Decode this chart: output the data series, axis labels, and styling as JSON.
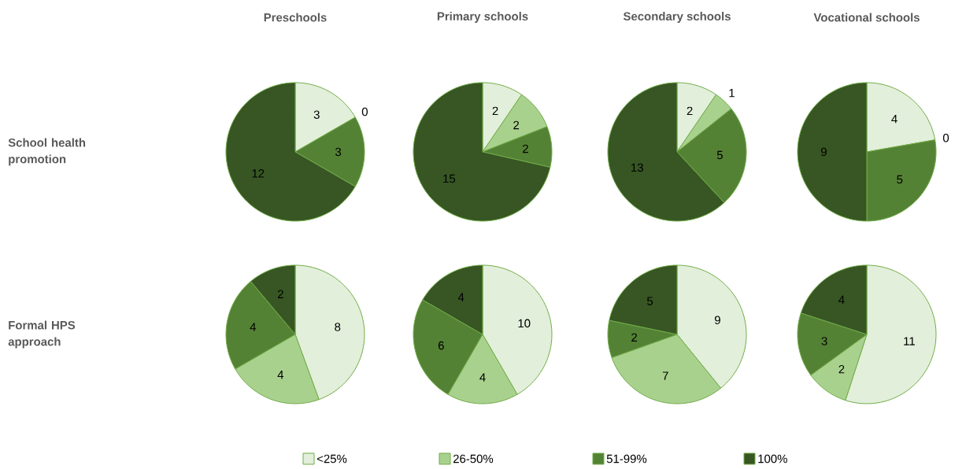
{
  "chart_data": [
    {
      "type": "pie",
      "title": "Preschools",
      "ylabel": "School health promotion",
      "categories": [
        null,
        null,
        null,
        null
      ],
      "values": [
        3,
        0,
        3,
        12
      ],
      "value_labels": [
        "3",
        "0",
        "3",
        "12"
      ],
      "colors": [
        "#e2efda",
        "#a9d18e",
        "#548235",
        "#375623"
      ]
    },
    {
      "type": "pie",
      "title": "Primary schools",
      "categories": [
        null,
        null,
        null,
        null
      ],
      "values": [
        2,
        2,
        2,
        15
      ],
      "value_labels": [
        "2",
        "2",
        "2",
        "15"
      ],
      "colors": [
        "#e2efda",
        "#a9d18e",
        "#548235",
        "#375623"
      ]
    },
    {
      "type": "pie",
      "title": "Secondary schools",
      "categories": [
        null,
        null,
        null,
        null
      ],
      "values": [
        2,
        1,
        5,
        13
      ],
      "value_labels": [
        "2",
        "1",
        "5",
        "13"
      ],
      "colors": [
        "#e2efda",
        "#a9d18e",
        "#548235",
        "#375623"
      ]
    },
    {
      "type": "pie",
      "title": "Vocational schools",
      "categories": [
        null,
        null,
        null,
        null
      ],
      "values": [
        4,
        0,
        5,
        9
      ],
      "value_labels": [
        "4",
        "0",
        "5",
        "9"
      ],
      "colors": [
        "#e2efda",
        "#a9d18e",
        "#548235",
        "#375623"
      ]
    },
    {
      "type": "pie",
      "ylabel": "Formal HPS approach",
      "categories": [
        null,
        null,
        null,
        null
      ],
      "values": [
        8,
        4,
        4,
        2
      ],
      "value_labels": [
        "8",
        "4",
        "4",
        "2"
      ],
      "colors": [
        "#e2efda",
        "#a9d18e",
        "#548235",
        "#375623"
      ]
    },
    {
      "type": "pie",
      "categories": [
        null,
        null,
        null,
        null
      ],
      "values": [
        10,
        4,
        6,
        4
      ],
      "value_labels": [
        "10",
        "4",
        "6",
        "4"
      ],
      "colors": [
        "#e2efda",
        "#a9d18e",
        "#548235",
        "#375623"
      ]
    },
    {
      "type": "pie",
      "categories": [
        null,
        null,
        null,
        null
      ],
      "values": [
        9,
        7,
        2,
        5
      ],
      "value_labels": [
        "9",
        "7",
        "2",
        "5"
      ],
      "colors": [
        "#e2efda",
        "#a9d18e",
        "#548235",
        "#375623"
      ]
    },
    {
      "type": "pie",
      "categories": [
        "<25%",
        "26-50%",
        "51-99%",
        "100%"
      ],
      "values": [
        11,
        2,
        3,
        4
      ],
      "value_labels": [
        "11",
        "2",
        "3",
        "4"
      ],
      "colors": [
        "#e2efda",
        "#a9d18e",
        "#548235",
        "#375623"
      ],
      "legend": "bottom"
    }
  ]
}
